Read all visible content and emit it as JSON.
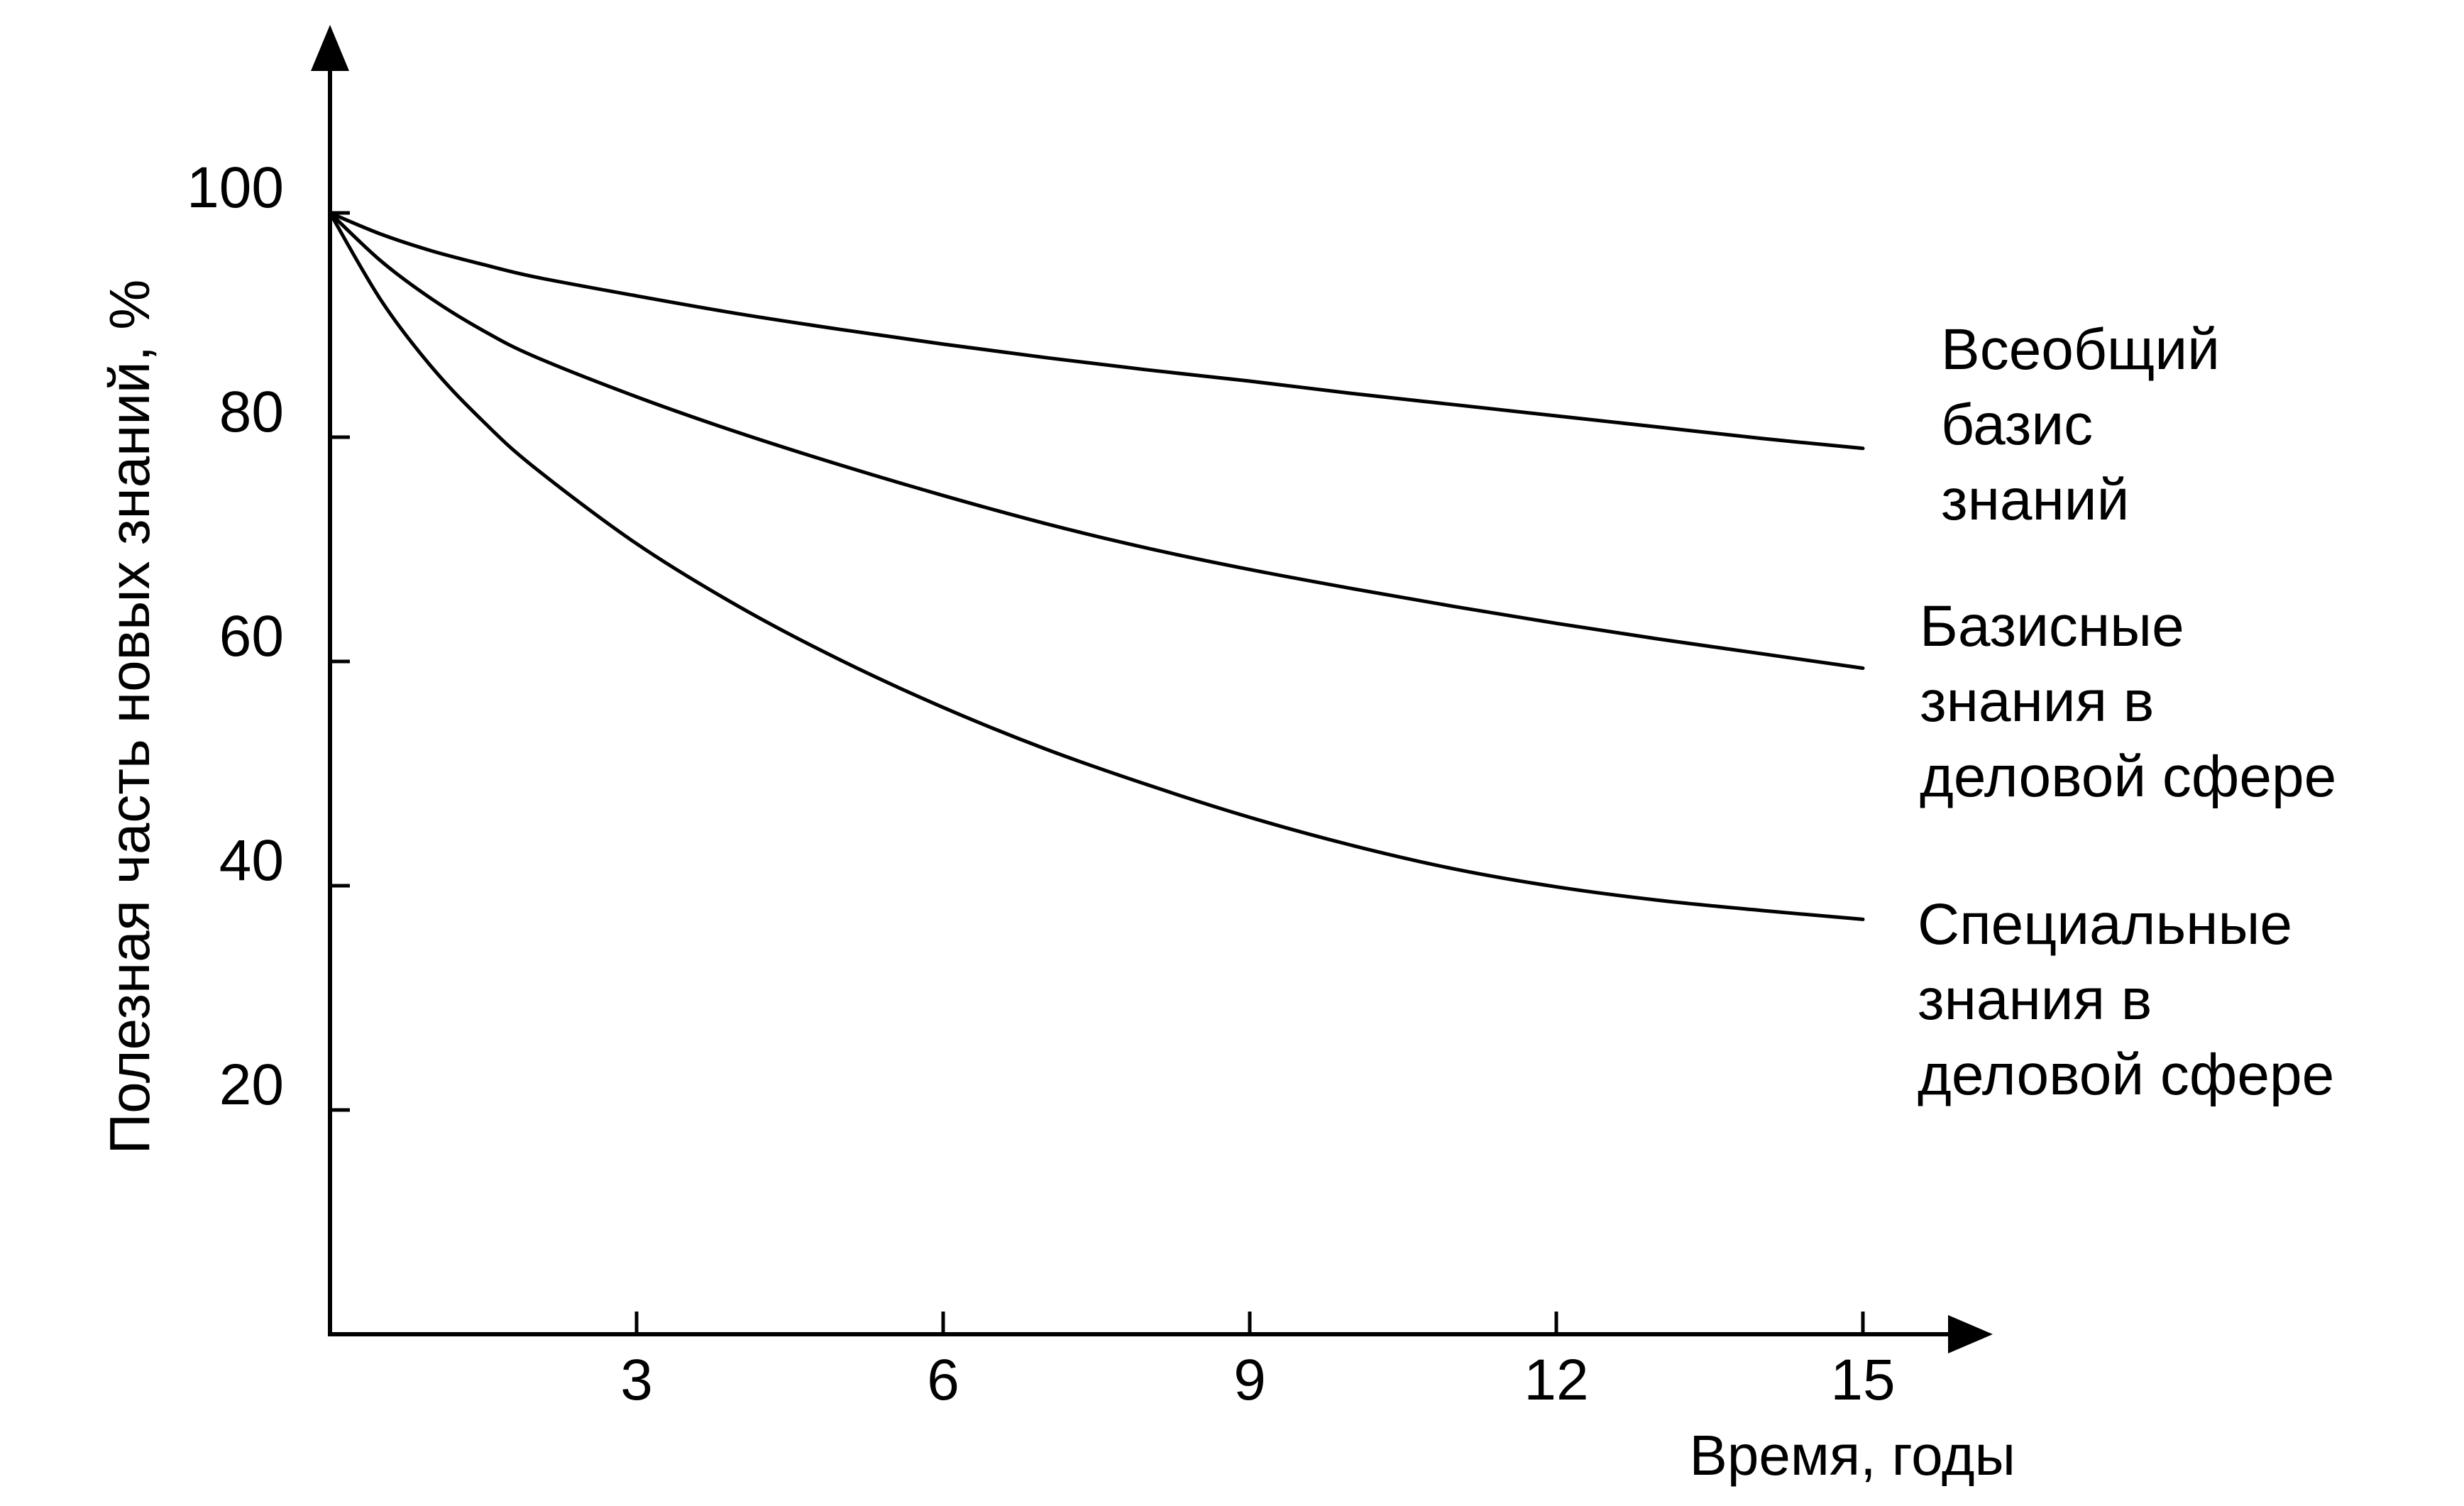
{
  "chart_data": {
    "type": "line",
    "xlabel": "Время, годы",
    "ylabel": "Полезная  часть  новых знаний, %",
    "xlim": [
      0,
      16
    ],
    "ylim": [
      0,
      118
    ],
    "x_ticks": [
      3,
      6,
      9,
      12,
      15
    ],
    "x_tick_labels": [
      "3",
      "6",
      "9",
      "12",
      "15"
    ],
    "y_ticks": [
      20,
      40,
      60,
      80,
      100
    ],
    "y_tick_labels": [
      "20",
      "40",
      "60",
      "80",
      "100"
    ],
    "grid": false,
    "legend": "inline labels at right end of each curve",
    "colors": {
      "line": "#000000",
      "axis": "#000000",
      "background": "#ffffff"
    },
    "x": [
      0,
      0.5,
      1,
      1.5,
      2,
      3,
      4,
      5,
      6,
      7,
      8,
      9,
      10,
      11,
      12,
      13,
      14,
      15
    ],
    "series": [
      {
        "name_lines": [
          "Всеобщий",
          "базис",
          "знаний"
        ],
        "values": [
          100,
          98.1,
          96.6,
          95.4,
          94.3,
          92.6,
          91.0,
          89.6,
          88.3,
          87.1,
          86.0,
          85.0,
          83.9,
          82.9,
          81.9,
          80.9,
          79.9,
          79
        ]
      },
      {
        "name_lines": [
          "Базисные",
          "знания в",
          "деловой сфере"
        ],
        "values": [
          100,
          95.7,
          92.3,
          89.5,
          87.2,
          83.6,
          80.4,
          77.5,
          74.8,
          72.3,
          70.1,
          68.2,
          66.5,
          64.9,
          63.4,
          62.0,
          60.7,
          59.4
        ]
      },
      {
        "name_lines": [
          "Специальные",
          "знания в",
          "деловой сфере"
        ],
        "values": [
          100,
          92.2,
          86.2,
          81.4,
          77.3,
          70.5,
          64.9,
          60.1,
          55.9,
          52.2,
          49.0,
          46.1,
          43.6,
          41.5,
          39.9,
          38.7,
          37.8,
          37.0
        ]
      }
    ]
  }
}
